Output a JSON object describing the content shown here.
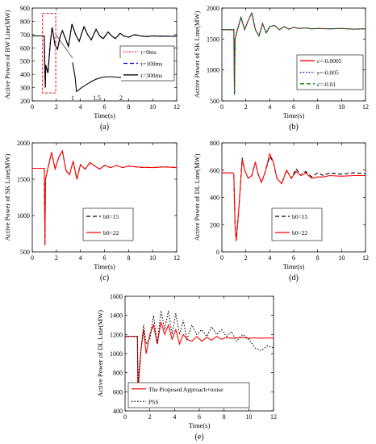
{
  "chart_data": [
    {
      "type": "line",
      "panel_label": "(a)",
      "xlabel": "Time(s)",
      "ylabel": "Active Power of BW Line(MW)",
      "xlim": [
        0,
        12
      ],
      "ylim": [
        200,
        900
      ],
      "xticks": [
        "0",
        "2",
        "4",
        "6",
        "8",
        "10",
        "12"
      ],
      "yticks": [
        "200",
        "300",
        "400",
        "500",
        "600",
        "700",
        "800",
        "900"
      ],
      "legend_position": "right",
      "series": [
        {
          "name": "τ=0ms",
          "color": "#ff0000",
          "dash": "dotted",
          "x": [
            0,
            0.9,
            1.0,
            1.08,
            1.12,
            1.3,
            1.5,
            1.65,
            1.75,
            1.9,
            2.1,
            2.3,
            2.5,
            2.8,
            3.0,
            3.3,
            3.6,
            3.9,
            4.3,
            4.6,
            4.9,
            5.3,
            5.6,
            5.9,
            6.3,
            6.6,
            6.9,
            7.3,
            7.6,
            8,
            8.5,
            9,
            9.5,
            10,
            10.5,
            11,
            11.5,
            12
          ],
          "y": [
            690,
            690,
            690,
            300,
            470,
            410,
            640,
            755,
            700,
            620,
            590,
            680,
            730,
            660,
            610,
            780,
            700,
            650,
            760,
            700,
            660,
            740,
            690,
            670,
            720,
            690,
            670,
            710,
            690,
            680,
            700,
            690,
            685,
            690,
            688,
            688,
            687,
            688
          ]
        },
        {
          "name": "τ=100ms",
          "color": "#0000ff",
          "dash": "dashed",
          "x": [
            0,
            0.9,
            1.0,
            1.08,
            1.12,
            1.3,
            1.5,
            1.65,
            1.75,
            1.9,
            2.1,
            2.3,
            2.5,
            2.8,
            3.0,
            3.3,
            3.6,
            3.9,
            4.3,
            4.6,
            4.9,
            5.3,
            5.6,
            5.9,
            6.3,
            6.6,
            6.9,
            7.3,
            7.6,
            8,
            8.5,
            9,
            9.5,
            10,
            10.5,
            11,
            11.5,
            12
          ],
          "y": [
            690,
            690,
            690,
            300,
            470,
            410,
            640,
            755,
            700,
            620,
            590,
            680,
            730,
            660,
            610,
            780,
            700,
            650,
            760,
            700,
            660,
            740,
            690,
            670,
            720,
            690,
            670,
            710,
            690,
            680,
            700,
            690,
            685,
            690,
            688,
            688,
            687,
            688
          ]
        },
        {
          "name": "τ=300ms",
          "color": "#000000",
          "dash": "solid",
          "x": [
            0,
            0.9,
            1.0,
            1.08,
            1.12,
            1.3,
            1.5,
            1.65,
            1.75,
            1.9,
            2.1,
            2.3,
            2.5,
            2.8,
            3.0,
            3.3,
            3.6,
            3.9,
            4.3,
            4.6,
            4.9,
            5.3,
            5.6,
            5.9,
            6.3,
            6.6,
            6.9,
            7.3,
            7.6,
            8,
            8.5,
            9,
            9.5,
            10,
            10.5,
            11,
            11.5,
            12
          ],
          "y": [
            690,
            690,
            690,
            300,
            470,
            410,
            640,
            755,
            700,
            620,
            590,
            680,
            730,
            660,
            610,
            780,
            700,
            650,
            760,
            700,
            660,
            740,
            690,
            670,
            720,
            690,
            670,
            710,
            690,
            680,
            700,
            690,
            685,
            690,
            688,
            688,
            687,
            688
          ]
        }
      ],
      "inset": {
        "xticks": [
          "1",
          "1.5",
          "2"
        ],
        "x": [
          1.0,
          1.05,
          1.08,
          1.12,
          1.2,
          1.3,
          1.4,
          1.5,
          1.6,
          1.7,
          1.8,
          1.9,
          2.0
        ],
        "y": [
          690,
          500,
          300,
          320,
          360,
          400,
          440,
          470,
          490,
          500,
          500,
          495,
          490
        ]
      }
    },
    {
      "type": "line",
      "panel_label": "(b)",
      "xlabel": "Time(s)",
      "ylabel": "Active Power of SK Line(MW)",
      "xlim": [
        0,
        12
      ],
      "ylim": [
        500,
        2000
      ],
      "xticks": [
        "0",
        "2",
        "4",
        "6",
        "8",
        "10",
        "12"
      ],
      "yticks": [
        "500",
        "1000",
        "1500",
        "2000"
      ],
      "legend_position": "bottom-right",
      "series": [
        {
          "name": "ε=-0.0005",
          "color": "#ff0000",
          "dash": "solid",
          "x": [
            0,
            0.9,
            1.0,
            1.05,
            1.1,
            1.3,
            1.6,
            1.9,
            2.2,
            2.5,
            2.8,
            3.1,
            3.4,
            3.7,
            4.0,
            4.4,
            4.8,
            5.2,
            5.6,
            6.0,
            6.5,
            7.0,
            7.5,
            8,
            9,
            10,
            11,
            12
          ],
          "y": [
            1650,
            1650,
            1650,
            600,
            1500,
            1650,
            1850,
            1650,
            1800,
            1920,
            1650,
            1550,
            1750,
            1600,
            1700,
            1720,
            1650,
            1700,
            1660,
            1690,
            1670,
            1680,
            1665,
            1670,
            1665,
            1670,
            1660,
            1665
          ]
        },
        {
          "name": "ε=-0.005",
          "color": "#0000ff",
          "dash": "dotted",
          "x": [
            0,
            0.9,
            1.0,
            1.05,
            1.1,
            1.3,
            1.6,
            1.9,
            2.2,
            2.5,
            2.8,
            3.1,
            3.4,
            3.7,
            4.0,
            4.4,
            4.8,
            5.2,
            5.6,
            6.0,
            6.5,
            7.0,
            7.5,
            8,
            9,
            10,
            11,
            12
          ],
          "y": [
            1650,
            1650,
            1650,
            600,
            1500,
            1650,
            1850,
            1650,
            1800,
            1920,
            1650,
            1550,
            1750,
            1600,
            1700,
            1720,
            1650,
            1700,
            1660,
            1690,
            1670,
            1680,
            1665,
            1670,
            1665,
            1670,
            1660,
            1665
          ]
        },
        {
          "name": "ε=-0.01",
          "color": "#008000",
          "dash": "dashed",
          "x": [
            0,
            0.9,
            1.0,
            1.05,
            1.1,
            1.3,
            1.6,
            1.9,
            2.2,
            2.5,
            2.8,
            3.1,
            3.4,
            3.7,
            4.0,
            4.4,
            4.8,
            5.2,
            5.6,
            6.0,
            6.5,
            7.0,
            7.5,
            8,
            9,
            10,
            11,
            12
          ],
          "y": [
            1650,
            1650,
            1650,
            600,
            1500,
            1650,
            1850,
            1650,
            1800,
            1920,
            1650,
            1550,
            1750,
            1600,
            1700,
            1720,
            1650,
            1700,
            1660,
            1690,
            1670,
            1680,
            1665,
            1670,
            1665,
            1670,
            1660,
            1665
          ]
        }
      ]
    },
    {
      "type": "line",
      "panel_label": "(c)",
      "xlabel": "Time(s)",
      "ylabel": "Active Power of SK Line(MW)",
      "xlim": [
        0,
        12
      ],
      "ylim": [
        500,
        2000
      ],
      "xticks": [
        "0",
        "2",
        "4",
        "6",
        "8",
        "10",
        "12"
      ],
      "yticks": [
        "500",
        "1000",
        "1500",
        "2000"
      ],
      "legend_position": "bottom-right",
      "series": [
        {
          "name": "b0=15",
          "color": "#000000",
          "dash": "dashed",
          "x": [
            0,
            0.9,
            1.0,
            1.05,
            1.1,
            1.3,
            1.6,
            1.9,
            2.2,
            2.5,
            2.8,
            3.1,
            3.4,
            3.7,
            4.0,
            4.4,
            4.8,
            5.2,
            5.6,
            6.0,
            6.5,
            7.0,
            7.5,
            8,
            9,
            10,
            11,
            12
          ],
          "y": [
            1650,
            1650,
            1650,
            590,
            1500,
            1650,
            1870,
            1640,
            1800,
            1890,
            1620,
            1560,
            1750,
            1500,
            1700,
            1640,
            1730,
            1680,
            1640,
            1690,
            1660,
            1690,
            1660,
            1680,
            1665,
            1660,
            1670,
            1660
          ]
        },
        {
          "name": "b0=22",
          "color": "#ff0000",
          "dash": "solid",
          "x": [
            0,
            0.9,
            1.0,
            1.05,
            1.1,
            1.3,
            1.6,
            1.9,
            2.2,
            2.5,
            2.8,
            3.1,
            3.4,
            3.7,
            4.0,
            4.4,
            4.8,
            5.2,
            5.6,
            6.0,
            6.5,
            7.0,
            7.5,
            8,
            9,
            10,
            11,
            12
          ],
          "y": [
            1650,
            1650,
            1650,
            590,
            1500,
            1650,
            1870,
            1640,
            1800,
            1890,
            1620,
            1560,
            1750,
            1500,
            1700,
            1640,
            1730,
            1680,
            1640,
            1690,
            1660,
            1690,
            1660,
            1680,
            1665,
            1660,
            1670,
            1660
          ]
        }
      ]
    },
    {
      "type": "line",
      "panel_label": "(d)",
      "xlabel": "Time(s)",
      "ylabel": "Active Power of DL Line(MW)",
      "xlim": [
        0,
        12
      ],
      "ylim": [
        0,
        800
      ],
      "xticks": [
        "0",
        "2",
        "4",
        "6",
        "8",
        "10",
        "12"
      ],
      "yticks": [
        "0",
        "200",
        "400",
        "600",
        "800"
      ],
      "legend_position": "bottom-right",
      "series": [
        {
          "name": "b0=15",
          "color": "#000000",
          "dash": "dashed",
          "x": [
            0,
            0.9,
            1.0,
            1.1,
            1.2,
            1.4,
            1.7,
            1.9,
            2.2,
            2.5,
            2.8,
            3.0,
            3.3,
            3.6,
            4.0,
            4.3,
            4.6,
            5.0,
            5.4,
            5.8,
            6.2,
            6.6,
            7.0,
            7.5,
            8,
            8.5,
            9,
            10,
            11,
            12
          ],
          "y": [
            580,
            580,
            570,
            200,
            80,
            300,
            690,
            600,
            540,
            560,
            660,
            580,
            510,
            580,
            700,
            660,
            540,
            500,
            600,
            540,
            610,
            560,
            590,
            550,
            580,
            560,
            580,
            570,
            580,
            575
          ]
        },
        {
          "name": "b0=22",
          "color": "#ff0000",
          "dash": "solid",
          "x": [
            0,
            0.9,
            1.0,
            1.1,
            1.2,
            1.4,
            1.7,
            1.9,
            2.2,
            2.5,
            2.8,
            3.0,
            3.3,
            3.6,
            4.0,
            4.3,
            4.6,
            5.0,
            5.4,
            5.8,
            6.2,
            6.6,
            7.0,
            7.5,
            8,
            8.5,
            9,
            10,
            11,
            12
          ],
          "y": [
            580,
            580,
            570,
            200,
            80,
            300,
            680,
            600,
            540,
            560,
            660,
            580,
            510,
            580,
            720,
            660,
            540,
            500,
            600,
            540,
            590,
            560,
            580,
            540,
            550,
            550,
            560,
            555,
            560,
            560
          ]
        }
      ]
    },
    {
      "type": "line",
      "panel_label": "(e)",
      "xlabel": "Time(s)",
      "ylabel": "Active Power of DL Line(MW)",
      "xlim": [
        0,
        12
      ],
      "ylim": [
        400,
        1600
      ],
      "xticks": [
        "0",
        "2",
        "4",
        "6",
        "8",
        "10",
        "12"
      ],
      "yticks": [
        "400",
        "600",
        "800",
        "1000",
        "1200",
        "1400",
        "1600"
      ],
      "legend_position": "bottom-left",
      "series": [
        {
          "name": "The Proposed Approach+noise",
          "color": "#ff0000",
          "dash": "solid",
          "x": [
            0,
            0.9,
            1.0,
            1.05,
            1.1,
            1.3,
            1.5,
            1.7,
            2.0,
            2.3,
            2.6,
            2.9,
            3.2,
            3.5,
            3.8,
            4.1,
            4.4,
            4.7,
            5.0,
            5.4,
            5.8,
            6.2,
            6.6,
            7.0,
            7.4,
            7.8,
            8.2,
            8.6,
            9.0,
            9.5,
            10,
            10.5,
            11,
            11.5,
            12
          ],
          "y": [
            1180,
            1180,
            1180,
            450,
            700,
            1050,
            1250,
            1000,
            1200,
            1300,
            1100,
            1330,
            1200,
            1300,
            1150,
            1250,
            1100,
            1200,
            1150,
            1130,
            1180,
            1130,
            1170,
            1140,
            1180,
            1150,
            1170,
            1160,
            1165,
            1170,
            1160,
            1165,
            1160,
            1165,
            1160
          ]
        },
        {
          "name": "PSS",
          "color": "#000000",
          "dash": "dotted",
          "x": [
            0,
            0.9,
            1.0,
            1.05,
            1.1,
            1.3,
            1.5,
            1.7,
            2.0,
            2.3,
            2.6,
            2.9,
            3.2,
            3.5,
            3.8,
            4.1,
            4.4,
            4.7,
            5.0,
            5.4,
            5.8,
            6.2,
            6.6,
            7.0,
            7.4,
            7.8,
            8.2,
            8.6,
            9.0,
            9.5,
            10,
            10.5,
            11,
            11.5,
            12
          ],
          "y": [
            1180,
            1180,
            1180,
            700,
            800,
            1050,
            1300,
            1100,
            1150,
            1400,
            1100,
            1450,
            1250,
            1450,
            1200,
            1420,
            1200,
            1350,
            1150,
            1300,
            1200,
            1250,
            1180,
            1280,
            1200,
            1250,
            1180,
            1230,
            1130,
            1200,
            1150,
            1060,
            1030,
            1080,
            1060
          ]
        }
      ]
    }
  ]
}
